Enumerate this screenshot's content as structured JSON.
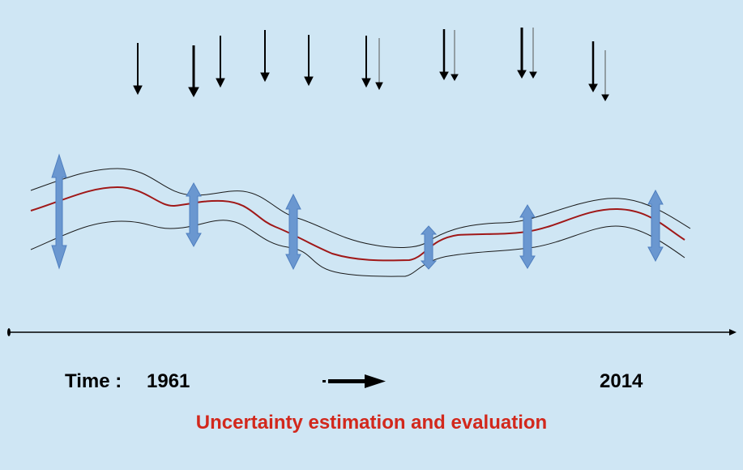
{
  "diagram": {
    "time_label": "Time :",
    "start_year": "1961",
    "end_year": "2014",
    "caption": "Uncertainty estimation and evaluation",
    "colors": {
      "background": "#cfe6f4",
      "central_line": "#a01818",
      "bound_lines": "#1a1a1a",
      "uncertainty_arrows": "#6a97d0",
      "caption": "#d2281c"
    },
    "observation_arrow_groups": 9,
    "uncertainty_arrows": 6
  }
}
